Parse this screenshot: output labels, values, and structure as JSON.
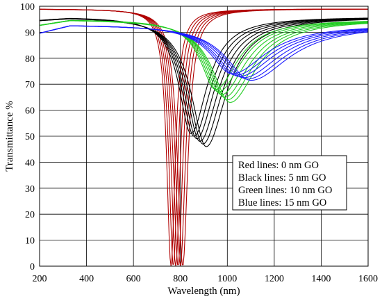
{
  "chart_data": {
    "type": "line",
    "xlabel": "Wavelength (nm)",
    "ylabel": "Transmittance %",
    "xlim": [
      200,
      1600
    ],
    "ylim": [
      0,
      100
    ],
    "xticks": [
      200,
      400,
      600,
      800,
      1000,
      1200,
      1400,
      1600
    ],
    "yticks": [
      0,
      10,
      20,
      30,
      40,
      50,
      60,
      70,
      80,
      90,
      100
    ],
    "grid": true,
    "legend_position": "lower-right",
    "legend": [
      "Red lines: 0 nm GO",
      "Black lines: 5 nm GO",
      "Green lines: 10 nm GO",
      "Blue lines: 15 nm GO"
    ],
    "groups": [
      {
        "color": "#b00000",
        "baseline": 99,
        "curves": [
          {
            "min_x": 760,
            "min_y": 0
          },
          {
            "min_x": 770,
            "min_y": 0
          },
          {
            "min_x": 780,
            "min_y": 0
          },
          {
            "min_x": 790,
            "min_y": 0
          },
          {
            "min_x": 800,
            "min_y": 0
          },
          {
            "min_x": 810,
            "min_y": 0
          }
        ]
      },
      {
        "color": "#000000",
        "baseline": 96,
        "curves": [
          {
            "min_x": 845,
            "min_y": 51
          },
          {
            "min_x": 858,
            "min_y": 50
          },
          {
            "min_x": 870,
            "min_y": 49
          },
          {
            "min_x": 883,
            "min_y": 48
          },
          {
            "min_x": 896,
            "min_y": 47
          },
          {
            "min_x": 910,
            "min_y": 46
          }
        ]
      },
      {
        "color": "#22cc22",
        "baseline": 95,
        "curves": [
          {
            "min_x": 950,
            "min_y": 68
          },
          {
            "min_x": 962,
            "min_y": 67
          },
          {
            "min_x": 975,
            "min_y": 66
          },
          {
            "min_x": 988,
            "min_y": 65
          },
          {
            "min_x": 1000,
            "min_y": 64
          },
          {
            "min_x": 1012,
            "min_y": 63
          }
        ]
      },
      {
        "color": "#1a1aff",
        "baseline": 93,
        "curves": [
          {
            "min_x": 1020,
            "min_y": 74
          },
          {
            "min_x": 1035,
            "min_y": 73.5
          },
          {
            "min_x": 1050,
            "min_y": 73
          },
          {
            "min_x": 1068,
            "min_y": 72.5
          },
          {
            "min_x": 1085,
            "min_y": 72
          },
          {
            "min_x": 1100,
            "min_y": 71.5
          }
        ]
      }
    ]
  }
}
